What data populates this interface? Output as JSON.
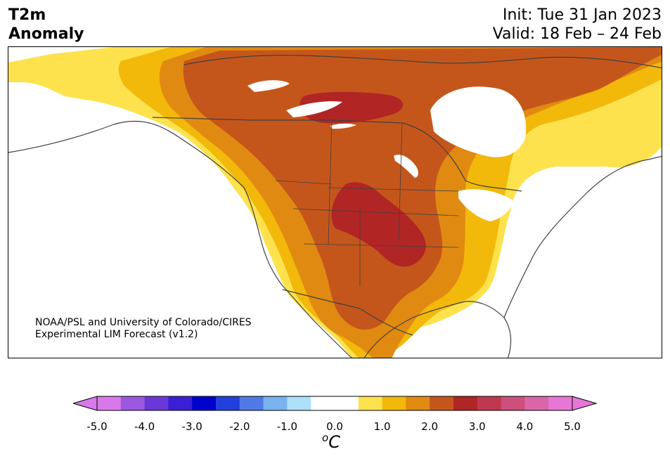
{
  "header": {
    "variable_line1": "T2m",
    "variable_line2": "Anomaly",
    "init": "Init: Tue 31 Jan 2023",
    "valid": "Valid: 18 Feb – 24 Feb"
  },
  "map": {
    "region": "North America",
    "credit_line1": "NOAA/PSL and University of Colorado/CIRES",
    "credit_line2": "Experimental LIM Forecast (v1.2)",
    "anomaly_colors": {
      "0.5_1.0": "#fde24e",
      "1.0_1.5": "#f2b80a",
      "1.5_2.0": "#e08a12",
      "2.0_2.5": "#c5561b",
      "2.5_3.0": "#b12525",
      "land_outline": "#404040"
    }
  },
  "colorbar": {
    "unit_symbol": "o",
    "unit_letter": "C",
    "ticks": [
      "-5.0",
      "-4.0",
      "-3.0",
      "-2.0",
      "-1.0",
      "0.0",
      "1.0",
      "2.0",
      "3.0",
      "4.0",
      "5.0"
    ],
    "colors": [
      "#d878ea",
      "#9c57e0",
      "#6a38d8",
      "#3b1fd4",
      "#0000cd",
      "#2440dc",
      "#4f7ae6",
      "#78b2ef",
      "#ade0f9",
      "#ffffff",
      "#ffffff",
      "#fde24e",
      "#f2b80a",
      "#e08a12",
      "#c5561b",
      "#b12525",
      "#c0384e",
      "#cc4f7c",
      "#d866a8",
      "#e677d6"
    ],
    "under_color": "#d878ea",
    "over_color": "#e677d6"
  }
}
